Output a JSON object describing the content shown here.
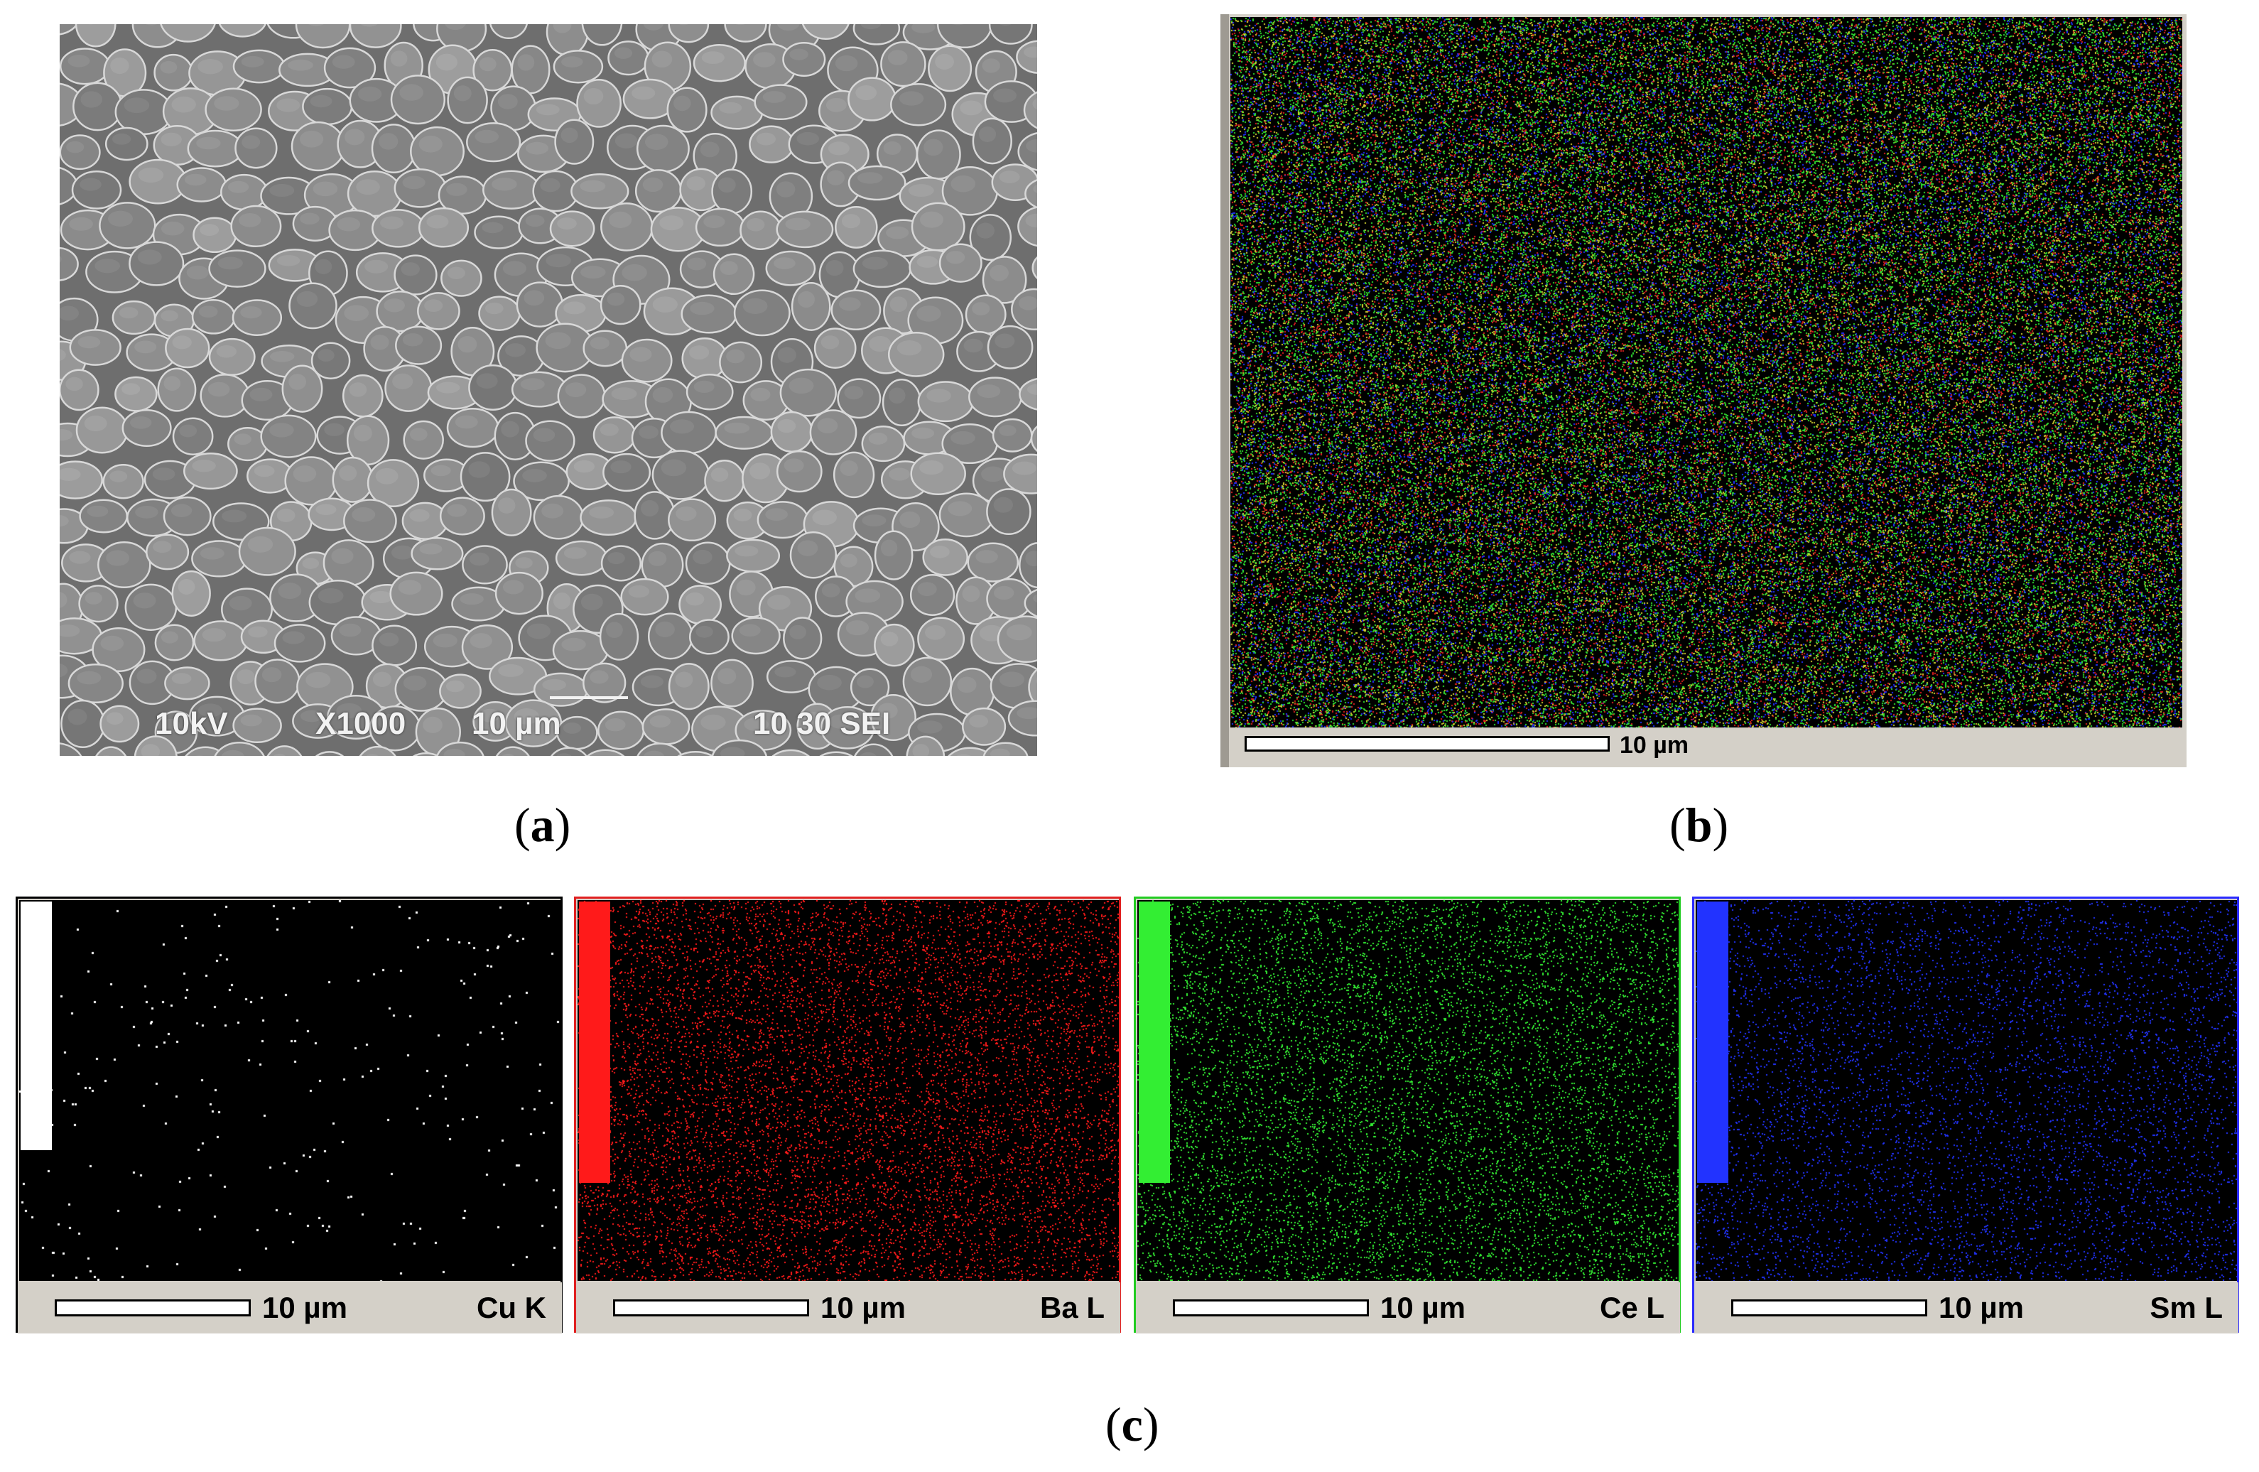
{
  "panel_a": {
    "voltage": "10kV",
    "magnification": "X1000",
    "scale": "10 µm",
    "mark": "10 30 SEI"
  },
  "panel_b": {
    "scale": "10 µm"
  },
  "panel_c": {
    "maps": [
      {
        "scale": "10 µm",
        "element": "Cu K",
        "color": "#ffffff",
        "border": "#000000"
      },
      {
        "scale": "10 µm",
        "element": "Ba L",
        "color": "#ff1a1a",
        "border": "#e02020"
      },
      {
        "scale": "10 µm",
        "element": "Ce L",
        "color": "#33ee33",
        "border": "#22cc22"
      },
      {
        "scale": "10 µm",
        "element": "Sm L",
        "color": "#2233ff",
        "border": "#2a2aff"
      }
    ]
  },
  "captions": {
    "a": "a",
    "b": "b",
    "c": "c"
  }
}
